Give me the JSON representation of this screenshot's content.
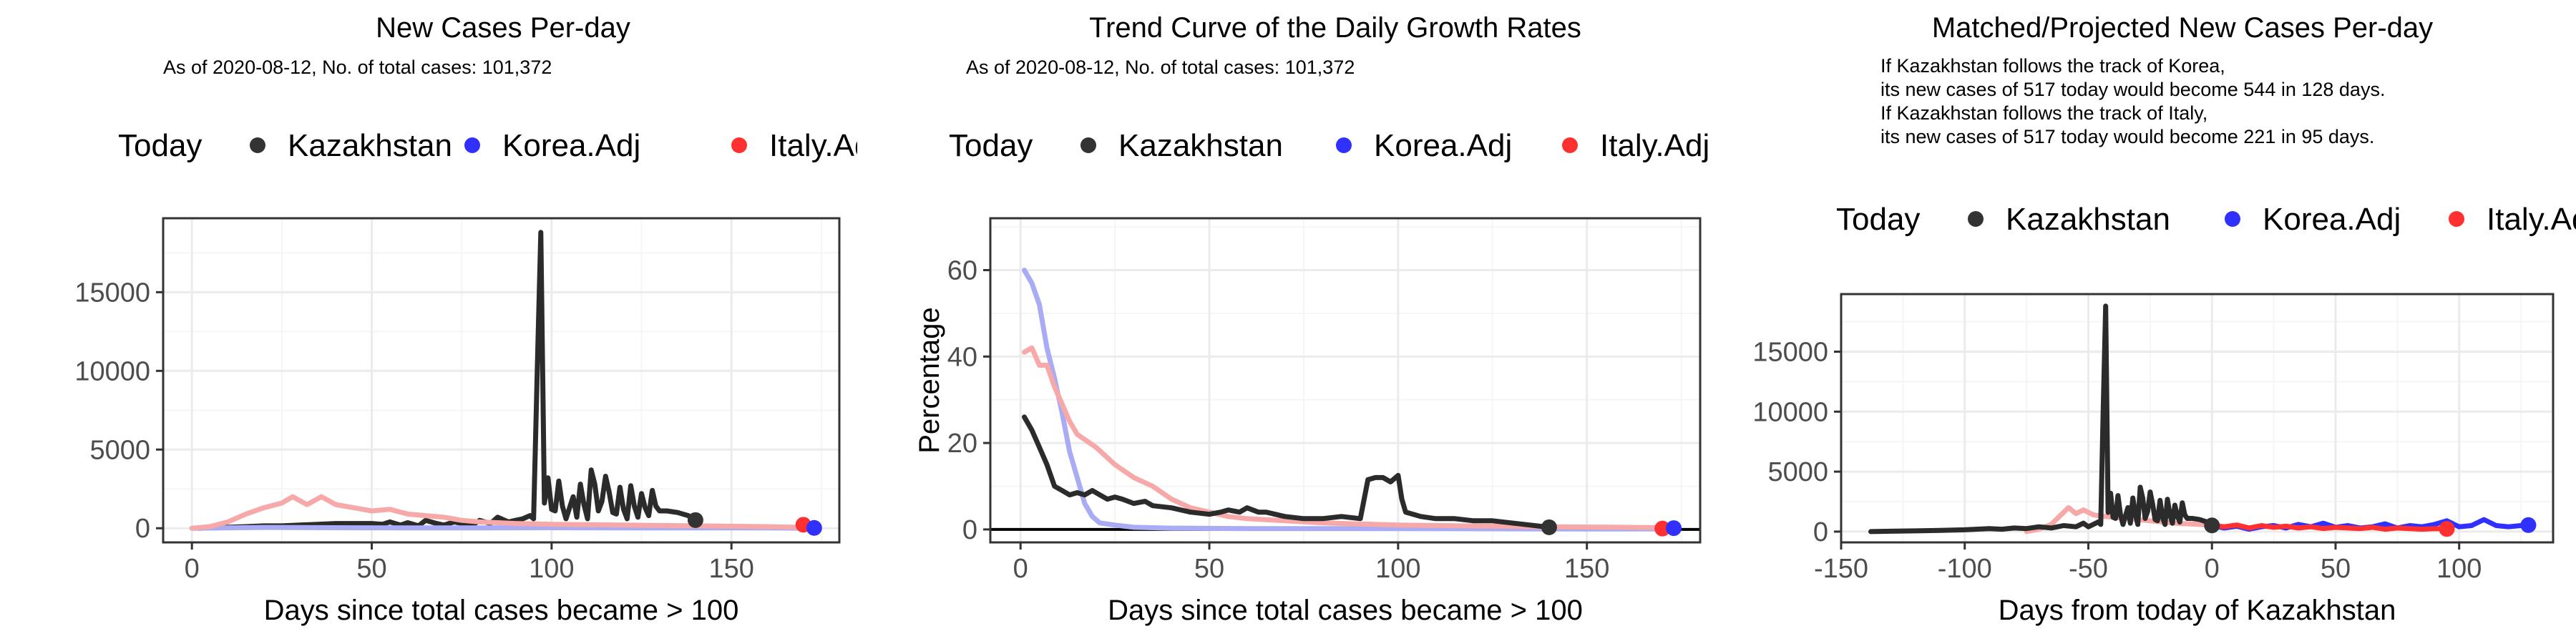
{
  "colors": {
    "today": "#333333",
    "kazakhstan": "#2b2b2b",
    "korea": "#3030ff",
    "italy": "#ff3030",
    "korea_line": "#a9acf5",
    "italy_line": "#f7a9a9",
    "grid_major": "#ebebeb",
    "grid_minor": "#f5f5f5"
  },
  "chart_data": [
    {
      "type": "line",
      "title": "New Cases Per-day",
      "subtitle": "As of 2020-08-12, No. of total cases: 101,372",
      "xlabel": "Days since total cases became > 100",
      "ylabel": "",
      "xlim": [
        -8,
        180
      ],
      "ylim": [
        -900,
        19700
      ],
      "xticks": [
        0,
        50,
        100,
        150
      ],
      "yticks": [
        0,
        5000,
        10000,
        15000
      ],
      "ytick_labels": [
        "0",
        "5000",
        "10000",
        "15000"
      ],
      "legend": {
        "position": "top",
        "entries": [
          "Today",
          "Kazakhstan",
          "Korea.Adj",
          "Italy.Adj"
        ]
      },
      "grid": true,
      "series": [
        {
          "name": "Kazakhstan",
          "color_key": "kazakhstan",
          "width": 7,
          "x": [
            2,
            5,
            10,
            15,
            20,
            25,
            30,
            35,
            40,
            45,
            50,
            53,
            55,
            58,
            60,
            63,
            65,
            68,
            70,
            73,
            75,
            78,
            80,
            83,
            85,
            88,
            90,
            92,
            94,
            95,
            96,
            97,
            98,
            99,
            100,
            101,
            102,
            103,
            104,
            105,
            106,
            107,
            108,
            109,
            110,
            111,
            112,
            113,
            114,
            115,
            116,
            117,
            118,
            119,
            120,
            121,
            122,
            123,
            124,
            125,
            126,
            127,
            128,
            129,
            130,
            132,
            135,
            138,
            140
          ],
          "y": [
            0,
            30,
            60,
            100,
            150,
            150,
            200,
            250,
            300,
            300,
            300,
            250,
            400,
            200,
            350,
            150,
            500,
            300,
            200,
            400,
            300,
            200,
            500,
            300,
            700,
            400,
            500,
            600,
            800,
            600,
            10000,
            18800,
            1600,
            3200,
            1200,
            1100,
            3000,
            1400,
            600,
            1300,
            2000,
            700,
            2800,
            1500,
            600,
            3700,
            2800,
            1100,
            1700,
            3300,
            2300,
            1000,
            900,
            2600,
            1200,
            600,
            2700,
            1400,
            700,
            2200,
            1300,
            800,
            2400,
            1400,
            1100,
            1100,
            1000,
            800,
            500
          ]
        },
        {
          "name": "Korea.Adj",
          "color_key": "korea_line",
          "width": 7,
          "x": [
            0,
            20,
            40,
            60,
            80,
            100,
            120,
            140,
            160,
            172
          ],
          "y": [
            0,
            50,
            30,
            20,
            20,
            30,
            20,
            20,
            20,
            0
          ]
        },
        {
          "name": "Italy.Adj",
          "color_key": "italy_line",
          "width": 7,
          "x": [
            0,
            5,
            10,
            15,
            20,
            25,
            28,
            32,
            36,
            40,
            45,
            50,
            55,
            60,
            65,
            70,
            75,
            80,
            90,
            100,
            120,
            140,
            160,
            170
          ],
          "y": [
            0,
            100,
            400,
            900,
            1300,
            1600,
            2000,
            1500,
            2000,
            1500,
            1300,
            1100,
            1200,
            900,
            800,
            700,
            500,
            400,
            300,
            250,
            200,
            150,
            100,
            50
          ]
        }
      ],
      "points": [
        {
          "name": "Kazakhstan",
          "color_key": "today",
          "x": 140,
          "y": 517
        },
        {
          "name": "Italy.Adj",
          "color_key": "italy",
          "x": 170,
          "y": 221
        },
        {
          "name": "Korea.Adj",
          "color_key": "korea",
          "x": 173,
          "y": 20
        }
      ]
    },
    {
      "type": "line",
      "title": "Trend Curve of the Daily Growth Rates",
      "subtitle": "As of 2020-08-12, No. of total cases: 101,372",
      "xlabel": "Days since total cases became > 100",
      "ylabel": "Percentage",
      "xlim": [
        -8,
        180
      ],
      "ylim": [
        -3,
        72
      ],
      "xticks": [
        0,
        50,
        100,
        150
      ],
      "yticks": [
        0,
        20,
        40,
        60
      ],
      "ytick_labels": [
        "0",
        "20",
        "40",
        "60"
      ],
      "legend": {
        "position": "top",
        "entries": [
          "Today",
          "Kazakhstan",
          "Korea.Adj",
          "Italy.Adj"
        ]
      },
      "grid": true,
      "hline": 0,
      "series": [
        {
          "name": "Korea.Adj",
          "color_key": "korea_line",
          "width": 7,
          "x": [
            1,
            3,
            5,
            7,
            9,
            11,
            13,
            15,
            17,
            19,
            21,
            25,
            30,
            40,
            60,
            100,
            140,
            172
          ],
          "y": [
            60,
            57,
            52,
            42,
            35,
            27,
            18,
            12,
            6,
            3,
            1.5,
            1,
            0.5,
            0.3,
            0.2,
            0.2,
            0.1,
            0.1
          ]
        },
        {
          "name": "Italy.Adj",
          "color_key": "italy_line",
          "width": 7,
          "x": [
            1,
            3,
            5,
            7,
            9,
            11,
            13,
            15,
            20,
            25,
            30,
            35,
            40,
            45,
            50,
            55,
            60,
            70,
            80,
            100,
            120,
            140,
            160,
            170
          ],
          "y": [
            41,
            42,
            38,
            38,
            33,
            29,
            25,
            22,
            19,
            15,
            12,
            10,
            7,
            5,
            4,
            3,
            2.5,
            2,
            1.5,
            1,
            0.8,
            0.6,
            0.5,
            0.4
          ]
        },
        {
          "name": "Kazakhstan",
          "color_key": "kazakhstan",
          "width": 7,
          "x": [
            1,
            3,
            5,
            7,
            9,
            11,
            13,
            15,
            17,
            19,
            21,
            23,
            25,
            27,
            30,
            33,
            35,
            40,
            45,
            50,
            53,
            55,
            58,
            60,
            63,
            65,
            70,
            75,
            80,
            85,
            90,
            92,
            94,
            96,
            98,
            100,
            101,
            102,
            104,
            106,
            110,
            115,
            120,
            125,
            130,
            135,
            140
          ],
          "y": [
            26,
            23,
            19,
            15,
            10,
            9,
            8,
            8.5,
            8,
            9,
            8,
            7,
            7.5,
            7,
            6,
            6.5,
            5.5,
            5,
            4,
            3.5,
            4,
            4.5,
            4,
            5,
            4,
            4,
            3,
            2.5,
            2.5,
            3,
            2.5,
            11.5,
            12,
            12,
            11,
            12.5,
            7,
            4,
            3.5,
            3,
            2.5,
            2.5,
            2,
            2,
            1.5,
            1,
            0.5
          ]
        }
      ],
      "points": [
        {
          "name": "Kazakhstan",
          "color_key": "today",
          "x": 140,
          "y": 0.5
        },
        {
          "name": "Italy.Adj",
          "color_key": "italy",
          "x": 170,
          "y": 0.2
        },
        {
          "name": "Korea.Adj",
          "color_key": "korea",
          "x": 173,
          "y": 0.3
        }
      ]
    },
    {
      "type": "line",
      "title": "Matched/Projected New Cases Per-day",
      "subtitle": "If Kazakhstan follows the track of Korea,\nits new cases of 517 today would become 544 in 128 days.\nIf Kazakhstan follows the track of Italy,\nits new cases of 517 today would become 221 in 95 days.",
      "xlabel": "Days from today of Kazakhstan",
      "ylabel": "",
      "xlim": [
        -150,
        138
      ],
      "ylim": [
        -900,
        19800
      ],
      "xticks": [
        -150,
        -100,
        -50,
        0,
        50,
        100
      ],
      "yticks": [
        0,
        5000,
        10000,
        15000
      ],
      "ytick_labels": [
        "0",
        "5000",
        "10000",
        "15000"
      ],
      "legend": {
        "position": "top",
        "entries": [
          "Today",
          "Kazakhstan",
          "Korea.Adj",
          "Italy.Adj"
        ]
      },
      "grid": true,
      "series": [
        {
          "name": "Italy.Adj",
          "color_key": "italy_line",
          "width": 7,
          "x": [
            -75,
            -70,
            -65,
            -62,
            -58,
            -55,
            -52,
            -48,
            -45,
            -40,
            -35,
            -30,
            -25,
            -20,
            -15,
            -10,
            -5,
            0
          ],
          "y": [
            0,
            200,
            600,
            1200,
            2000,
            1500,
            1800,
            1400,
            1300,
            1200,
            1100,
            1000,
            900,
            800,
            700,
            650,
            600,
            520
          ]
        },
        {
          "name": "Kazakhstan",
          "color_key": "kazakhstan",
          "width": 7,
          "x": [
            -138,
            -130,
            -120,
            -110,
            -100,
            -90,
            -85,
            -80,
            -75,
            -70,
            -65,
            -60,
            -55,
            -52,
            -50,
            -48,
            -46,
            -45,
            -44,
            -43,
            -42,
            -41,
            -40,
            -39,
            -38,
            -37,
            -36,
            -35,
            -34,
            -33,
            -32,
            -31,
            -30,
            -29,
            -28,
            -27,
            -26,
            -25,
            -24,
            -23,
            -22,
            -21,
            -20,
            -19,
            -18,
            -17,
            -16,
            -15,
            -14,
            -13,
            -12,
            -11,
            -10,
            -8,
            -5,
            -2,
            0
          ],
          "y": [
            0,
            30,
            60,
            100,
            150,
            250,
            200,
            300,
            250,
            400,
            300,
            500,
            400,
            700,
            400,
            600,
            800,
            600,
            10000,
            18800,
            1600,
            3200,
            1200,
            1100,
            3000,
            1400,
            600,
            1300,
            2000,
            700,
            2800,
            1500,
            600,
            3700,
            2800,
            1100,
            1700,
            3300,
            2300,
            1000,
            900,
            2600,
            1200,
            600,
            2700,
            1400,
            700,
            2200,
            1300,
            800,
            2400,
            1400,
            1100,
            1100,
            1000,
            800,
            517
          ]
        },
        {
          "name": "Korea.Adj",
          "color_key": "korea",
          "width": 7,
          "x": [
            0,
            5,
            10,
            15,
            20,
            25,
            30,
            35,
            40,
            45,
            50,
            55,
            60,
            65,
            70,
            75,
            80,
            85,
            90,
            95,
            100,
            105,
            110,
            115,
            120,
            125,
            128
          ],
          "y": [
            500,
            300,
            450,
            200,
            400,
            500,
            300,
            600,
            400,
            700,
            350,
            500,
            300,
            400,
            650,
            300,
            500,
            400,
            600,
            900,
            400,
            500,
            1000,
            500,
            400,
            500,
            544
          ]
        },
        {
          "name": "Italy.Adj",
          "color_key": "italy",
          "width": 7,
          "x": [
            0,
            5,
            10,
            15,
            20,
            25,
            30,
            35,
            40,
            45,
            50,
            55,
            60,
            65,
            70,
            75,
            80,
            85,
            90,
            95
          ],
          "y": [
            517,
            400,
            550,
            300,
            500,
            350,
            450,
            300,
            400,
            250,
            350,
            300,
            250,
            350,
            200,
            300,
            250,
            200,
            250,
            221
          ]
        }
      ],
      "points": [
        {
          "name": "Kazakhstan",
          "color_key": "today",
          "x": 0,
          "y": 517
        },
        {
          "name": "Italy.Adj",
          "color_key": "italy",
          "x": 95,
          "y": 221
        },
        {
          "name": "Korea.Adj",
          "color_key": "korea",
          "x": 128,
          "y": 544
        }
      ]
    }
  ]
}
